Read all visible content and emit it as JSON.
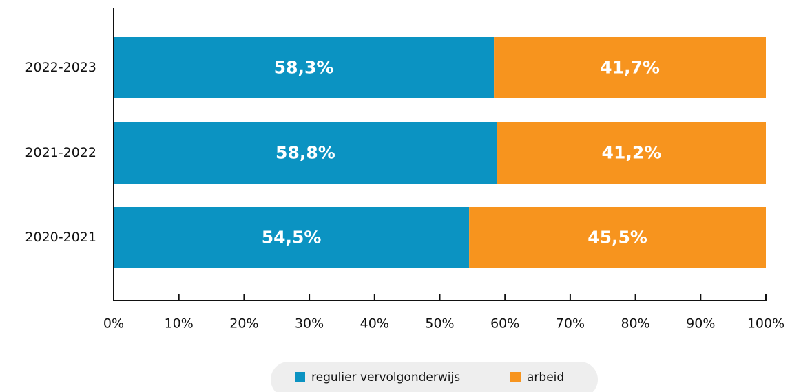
{
  "chart_data": {
    "type": "stacked-barh",
    "categories": [
      "2022-2023",
      "2021-2022",
      "2020-2021"
    ],
    "series": [
      {
        "name": "regulier vervolgonderwijs",
        "color": "#0b93c2",
        "values": [
          58.3,
          58.8,
          54.5
        ],
        "value_labels": [
          "58,3%",
          "58,8%",
          "54,5%"
        ]
      },
      {
        "name": "arbeid",
        "color": "#f7941e",
        "values": [
          41.7,
          41.2,
          45.5
        ],
        "value_labels": [
          "41,7%",
          "41,2%",
          "45,5%"
        ]
      }
    ],
    "xlim": [
      0,
      100
    ],
    "xticks": [
      {
        "value": 0,
        "label": "0%"
      },
      {
        "value": 10,
        "label": "10%"
      },
      {
        "value": 20,
        "label": "20%"
      },
      {
        "value": 30,
        "label": "30%"
      },
      {
        "value": 40,
        "label": "40%"
      },
      {
        "value": 50,
        "label": "50%"
      },
      {
        "value": 60,
        "label": "60%"
      },
      {
        "value": 70,
        "label": "70%"
      },
      {
        "value": 80,
        "label": "80%"
      },
      {
        "value": 90,
        "label": "90%"
      },
      {
        "value": 100,
        "label": "100%"
      }
    ],
    "legend": "bottom"
  }
}
